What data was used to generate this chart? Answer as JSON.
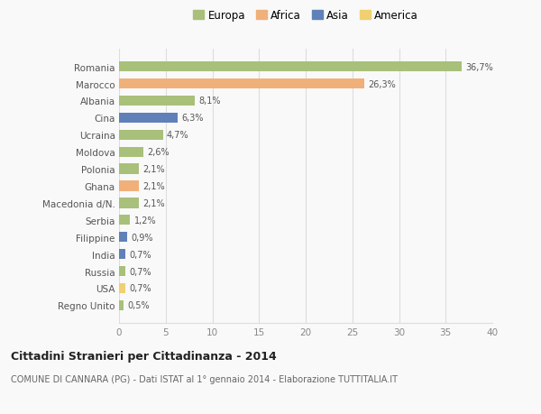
{
  "categories": [
    "Romania",
    "Marocco",
    "Albania",
    "Cina",
    "Ucraina",
    "Moldova",
    "Polonia",
    "Ghana",
    "Macedonia d/N.",
    "Serbia",
    "Filippine",
    "India",
    "Russia",
    "USA",
    "Regno Unito"
  ],
  "values": [
    36.7,
    26.3,
    8.1,
    6.3,
    4.7,
    2.6,
    2.1,
    2.1,
    2.1,
    1.2,
    0.9,
    0.7,
    0.7,
    0.7,
    0.5
  ],
  "labels": [
    "36,7%",
    "26,3%",
    "8,1%",
    "6,3%",
    "4,7%",
    "2,6%",
    "2,1%",
    "2,1%",
    "2,1%",
    "1,2%",
    "0,9%",
    "0,7%",
    "0,7%",
    "0,7%",
    "0,5%"
  ],
  "colors": [
    "#a8c07a",
    "#f0b07a",
    "#a8c07a",
    "#6080b8",
    "#a8c07a",
    "#a8c07a",
    "#a8c07a",
    "#f0b07a",
    "#a8c07a",
    "#a8c07a",
    "#6080b8",
    "#6080b8",
    "#a8c07a",
    "#f0d070",
    "#a8c07a"
  ],
  "legend_labels": [
    "Europa",
    "Africa",
    "Asia",
    "America"
  ],
  "legend_colors": [
    "#a8c07a",
    "#f0b07a",
    "#6080b8",
    "#f0d070"
  ],
  "title": "Cittadini Stranieri per Cittadinanza - 2014",
  "subtitle": "COMUNE DI CANNARA (PG) - Dati ISTAT al 1° gennaio 2014 - Elaborazione TUTTITALIA.IT",
  "xlim": [
    0,
    40
  ],
  "xticks": [
    0,
    5,
    10,
    15,
    20,
    25,
    30,
    35,
    40
  ],
  "background_color": "#f9f9f9",
  "grid_color": "#dddddd",
  "bar_height": 0.6,
  "fig_width": 6.0,
  "fig_height": 4.6,
  "dpi": 100
}
